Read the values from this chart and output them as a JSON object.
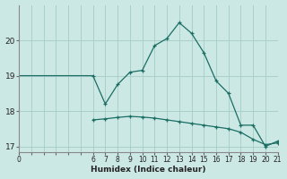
{
  "xlabel": "Humidex (Indice chaleur)",
  "bg_color": "#cce8e4",
  "line_color": "#1a6e63",
  "grid_color": "#aacfcb",
  "x_main": [
    0,
    1,
    2,
    3,
    4,
    5,
    6,
    7,
    8,
    9,
    10,
    11,
    12,
    13,
    14,
    15,
    16,
    17,
    18,
    19,
    20,
    21
  ],
  "y_main": [
    19.0,
    19.0,
    19.0,
    19.0,
    19.0,
    19.0,
    19.0,
    18.2,
    18.75,
    19.1,
    19.15,
    19.85,
    20.05,
    20.5,
    20.2,
    19.65,
    18.85,
    18.5,
    17.6,
    17.6,
    17.0,
    17.15
  ],
  "x_second": [
    6,
    7,
    8,
    9,
    10,
    11,
    12,
    13,
    14,
    15,
    16,
    17,
    18,
    19,
    20,
    21
  ],
  "y_second": [
    17.75,
    17.78,
    17.82,
    17.85,
    17.83,
    17.8,
    17.75,
    17.7,
    17.65,
    17.6,
    17.55,
    17.5,
    17.4,
    17.2,
    17.05,
    17.1
  ],
  "xlim": [
    0,
    21
  ],
  "ylim": [
    16.85,
    21.0
  ],
  "yticks": [
    17,
    18,
    19,
    20
  ],
  "xticks_all": [
    0,
    1,
    2,
    3,
    4,
    5,
    6,
    7,
    8,
    9,
    10,
    11,
    12,
    13,
    14,
    15,
    16,
    17,
    18,
    19,
    20,
    21
  ],
  "xtick_labels": [
    "0",
    "",
    "",
    "",
    "",
    "",
    "6",
    "7",
    "8",
    "9",
    "10",
    "11",
    "12",
    "13",
    "14",
    "15",
    "16",
    "17",
    "18",
    "19",
    "20",
    "21"
  ]
}
